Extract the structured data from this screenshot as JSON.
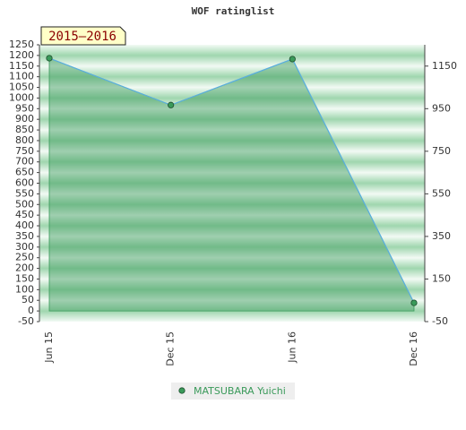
{
  "chart_data": {
    "type": "line",
    "title": "WOF ratinglist",
    "annotation": "2015–2016",
    "categories": [
      "Jun 15",
      "Dec 15",
      "Jun 16",
      "Dec 16"
    ],
    "series": [
      {
        "name": "MATSUBARA Yuichi",
        "color": "#3a9a5a",
        "values": [
          1187,
          967,
          1183,
          38
        ]
      }
    ],
    "ylim": [
      -50,
      1250
    ],
    "yticks": [
      -50,
      0,
      50,
      100,
      150,
      200,
      250,
      300,
      350,
      400,
      450,
      500,
      550,
      600,
      650,
      700,
      750,
      800,
      850,
      900,
      950,
      1000,
      1050,
      1100,
      1150,
      1200,
      1250
    ],
    "y2lim": [
      -50,
      1250
    ],
    "y2ticks": [
      -50,
      150,
      350,
      550,
      750,
      950,
      1150
    ],
    "area": true
  }
}
